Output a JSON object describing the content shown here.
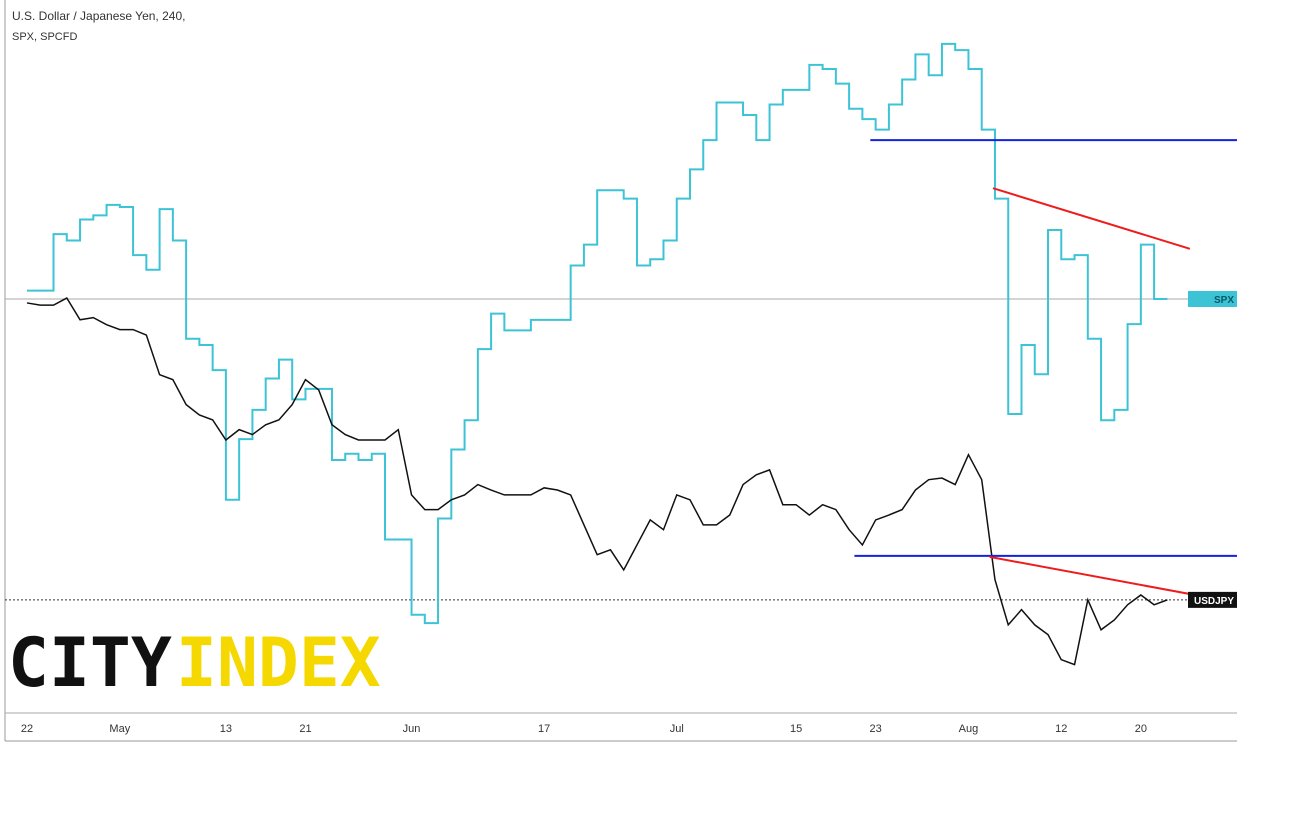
{
  "chart_data": {
    "type": "line",
    "title": "U.S. Dollar / Japanese Yen, 240,",
    "subtitle": "SPX, SPCFD",
    "logo": [
      "CITY",
      "INDEX"
    ],
    "categories": [
      "22",
      null,
      null,
      null,
      null,
      null,
      null,
      "May",
      null,
      null,
      null,
      null,
      null,
      null,
      null,
      "13",
      null,
      null,
      null,
      null,
      null,
      "21",
      null,
      null,
      null,
      null,
      null,
      null,
      null,
      "Jun",
      null,
      null,
      null,
      null,
      null,
      null,
      null,
      null,
      null,
      "17",
      null,
      null,
      null,
      null,
      null,
      null,
      null,
      null,
      null,
      "Jul",
      null,
      null,
      null,
      null,
      null,
      null,
      null,
      null,
      "15",
      null,
      null,
      null,
      null,
      null,
      "23",
      null,
      null,
      null,
      null,
      null,
      null,
      "Aug",
      null,
      null,
      null,
      null,
      null,
      null,
      "12",
      null,
      null,
      null,
      null,
      null,
      "20",
      null,
      null
    ],
    "ylim": [
      104.34,
      117.45
    ],
    "y2lim": [
      2703,
      3044
    ],
    "series": [
      {
        "name": "SPX",
        "color": "#3cc3d6",
        "axis": "y2",
        "step": true,
        "values": [
          2905,
          2905,
          2932,
          2929,
          2939,
          2941,
          2946,
          2945,
          2922,
          2915,
          2944,
          2929,
          2882,
          2879,
          2867,
          2805,
          2834,
          2848,
          2863,
          2872,
          2853,
          2858,
          2858,
          2824,
          2827,
          2824,
          2827,
          2786,
          2786,
          2750,
          2746,
          2796,
          2829,
          2843,
          2877,
          2894,
          2886,
          2886,
          2891,
          2891,
          2891,
          2917,
          2927,
          2953,
          2953,
          2949,
          2917,
          2920,
          2929,
          2949,
          2963,
          2977,
          2995,
          2995,
          2989,
          2977,
          2994,
          3001,
          3001,
          3013,
          3011,
          3004,
          2992,
          2987,
          2982,
          2994,
          3006,
          3018,
          3008,
          3023,
          3020,
          3011,
          2982,
          2949,
          2846,
          2879,
          2865,
          2934,
          2920,
          2922,
          2882,
          2843,
          2848,
          2889,
          2927,
          2901,
          2901
        ]
      },
      {
        "name": "USDJPY",
        "color": "#111111",
        "step": false,
        "values": [
          111.88,
          111.84,
          111.84,
          111.97,
          111.57,
          111.61,
          111.48,
          111.39,
          111.39,
          111.29,
          110.56,
          110.47,
          110.01,
          109.82,
          109.73,
          109.36,
          109.55,
          109.46,
          109.64,
          109.73,
          110.01,
          110.47,
          110.28,
          109.64,
          109.46,
          109.36,
          109.36,
          109.36,
          109.55,
          108.35,
          108.08,
          108.08,
          108.26,
          108.35,
          108.54,
          108.44,
          108.35,
          108.35,
          108.35,
          108.48,
          108.44,
          108.35,
          107.8,
          107.25,
          107.34,
          106.97,
          107.43,
          107.89,
          107.71,
          108.35,
          108.26,
          107.8,
          107.8,
          107.98,
          108.54,
          108.72,
          108.81,
          108.17,
          108.17,
          107.98,
          108.17,
          108.08,
          107.71,
          107.43,
          107.89,
          107.98,
          108.08,
          108.44,
          108.63,
          108.66,
          108.54,
          109.09,
          108.63,
          106.79,
          105.96,
          106.24,
          105.96,
          105.78,
          105.32,
          105.23,
          106.42,
          105.87,
          106.05,
          106.33,
          106.51,
          106.33,
          106.42
        ]
      }
    ],
    "drawings": [
      {
        "kind": "horizontal",
        "axis": "y2",
        "x": 63.6,
        "value": 2977,
        "color": "#1222e0"
      },
      {
        "kind": "horizontal",
        "axis": "y",
        "x": 62.4,
        "value": 107.23,
        "color": "#1222e0"
      },
      {
        "kind": "trend",
        "axis": "y2",
        "x": [
          72.85,
          87.7
        ],
        "values": [
          2954,
          2925
        ],
        "color": "#ee1c1c"
      },
      {
        "kind": "trend",
        "axis": "y",
        "x": [
          72.6,
          88.1
        ],
        "values": [
          107.21,
          106.51
        ],
        "color": "#ee1c1c"
      }
    ]
  }
}
